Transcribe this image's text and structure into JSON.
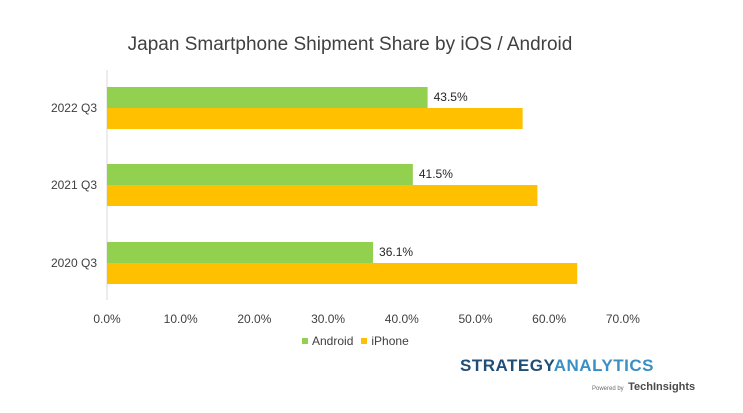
{
  "chart_data": {
    "type": "bar",
    "orientation": "horizontal",
    "title": "Japan Smartphone Shipment Share by iOS / Android",
    "categories": [
      "2022 Q3",
      "2021 Q3",
      "2020 Q3"
    ],
    "series": [
      {
        "name": "Android",
        "color": "#92d050",
        "values": [
          43.5,
          41.5,
          36.1
        ],
        "data_labels": [
          "43.5%",
          "41.5%",
          "36.1%"
        ]
      },
      {
        "name": "iPhone",
        "color": "#ffc000",
        "values": [
          56.4,
          58.4,
          63.8
        ]
      }
    ],
    "xlim": [
      0,
      70
    ],
    "x_ticks": [
      "0.0%",
      "10.0%",
      "20.0%",
      "30.0%",
      "40.0%",
      "50.0%",
      "60.0%",
      "70.0%"
    ],
    "legend_position": "bottom",
    "grid": false
  },
  "logo": {
    "brand_part1": "STRATEGY",
    "brand_part2": "ANALYTICS",
    "powered_by": "Powered by",
    "company": "TechInsights"
  }
}
